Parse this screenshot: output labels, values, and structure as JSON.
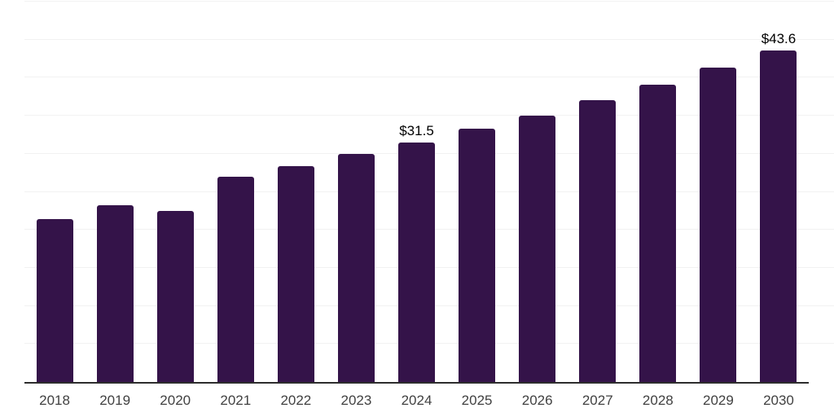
{
  "chart": {
    "background_color": "#ffffff",
    "bar_color": "#341349",
    "gridline_color": "#f2f2f2",
    "axis_line_color": "#2d2d2d",
    "tick_label_color": "#414141",
    "value_label_color": "#000000"
  },
  "chart_data": {
    "type": "bar",
    "title": "",
    "xlabel": "",
    "ylabel": "",
    "categories": [
      "2018",
      "2019",
      "2020",
      "2021",
      "2022",
      "2023",
      "2024",
      "2025",
      "2026",
      "2027",
      "2028",
      "2029",
      "2030"
    ],
    "values": [
      21.4,
      23.2,
      22.5,
      27.0,
      28.4,
      30.0,
      31.5,
      33.3,
      35.0,
      37.0,
      39.1,
      41.3,
      43.6
    ],
    "point_labels": [
      "",
      "",
      "",
      "",
      "",
      "",
      "$31.5",
      "",
      "",
      "",
      "",
      "",
      "$43.6"
    ],
    "ylim": [
      0,
      50
    ],
    "gridline_step": 5,
    "grid": true,
    "legend": false,
    "y_axis_tick_labels_visible": false
  }
}
